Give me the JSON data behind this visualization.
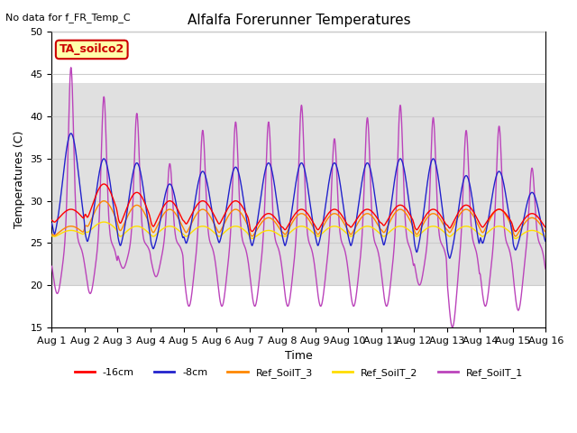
{
  "title": "Alfalfa Forerunner Temperatures",
  "no_data_text": "No data for f_FR_Temp_C",
  "xlabel": "Time",
  "ylabel": "Temperatures (C)",
  "ylim": [
    15,
    50
  ],
  "xlim": [
    0,
    15
  ],
  "xtick_labels": [
    "Aug 1",
    "Aug 2",
    "Aug 3",
    "Aug 4",
    "Aug 5",
    "Aug 6",
    "Aug 7",
    "Aug 8",
    "Aug 9",
    "Aug 10",
    "Aug 11",
    "Aug 12",
    "Aug 13",
    "Aug 14",
    "Aug 15",
    "Aug 16"
  ],
  "yticks": [
    15,
    20,
    25,
    30,
    35,
    40,
    45,
    50
  ],
  "grid_color": "#cccccc",
  "background_color": "#ffffff",
  "plot_bg_color": "#ffffff",
  "axhspan_ymin": 20,
  "axhspan_ymax": 44,
  "axhspan_color": "#e0e0e0",
  "legend_items": [
    "-16cm",
    "-8cm",
    "Ref_SoilT_3",
    "Ref_SoilT_2",
    "Ref_SoilT_1"
  ],
  "legend_colors": [
    "#ff0000",
    "#2222cc",
    "#ff8800",
    "#ffdd00",
    "#bb44bb"
  ],
  "line_colors": {
    "m16cm": "#ff0000",
    "m8cm": "#2222cc",
    "ref3": "#ff8800",
    "ref2": "#ffdd00",
    "ref1": "#bb44bb"
  },
  "annotation_box": "TA_soilco2",
  "annotation_box_bg": "#ffffaa",
  "annotation_box_edge": "#cc0000",
  "title_fontsize": 11,
  "axis_fontsize": 9,
  "tick_fontsize": 8
}
